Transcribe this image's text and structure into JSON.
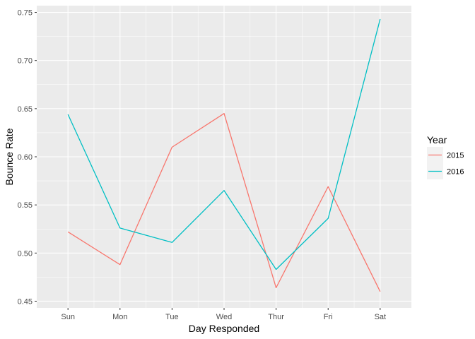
{
  "chart_data": {
    "type": "line",
    "categories": [
      "Sun",
      "Mon",
      "Tue",
      "Wed",
      "Thur",
      "Fri",
      "Sat"
    ],
    "series": [
      {
        "name": "2015",
        "color": "#F8766D",
        "values": [
          0.522,
          0.488,
          0.61,
          0.645,
          0.464,
          0.569,
          0.46
        ]
      },
      {
        "name": "2016",
        "color": "#00BFC4",
        "values": [
          0.644,
          0.526,
          0.511,
          0.565,
          0.483,
          0.536,
          0.743
        ]
      }
    ],
    "xlabel": "Day Responded",
    "ylabel": "Bounce Rate",
    "ylim": [
      0.443,
      0.757
    ],
    "yticks": [
      0.45,
      0.5,
      0.55,
      0.6,
      0.65,
      0.7,
      0.75
    ],
    "ytick_labels": [
      "0.45",
      "0.50",
      "0.55",
      "0.60",
      "0.65",
      "0.70",
      "0.75"
    ],
    "legend_title": "Year",
    "legend_position": "right",
    "panel_color": "#EBEBEB",
    "grid": true
  }
}
